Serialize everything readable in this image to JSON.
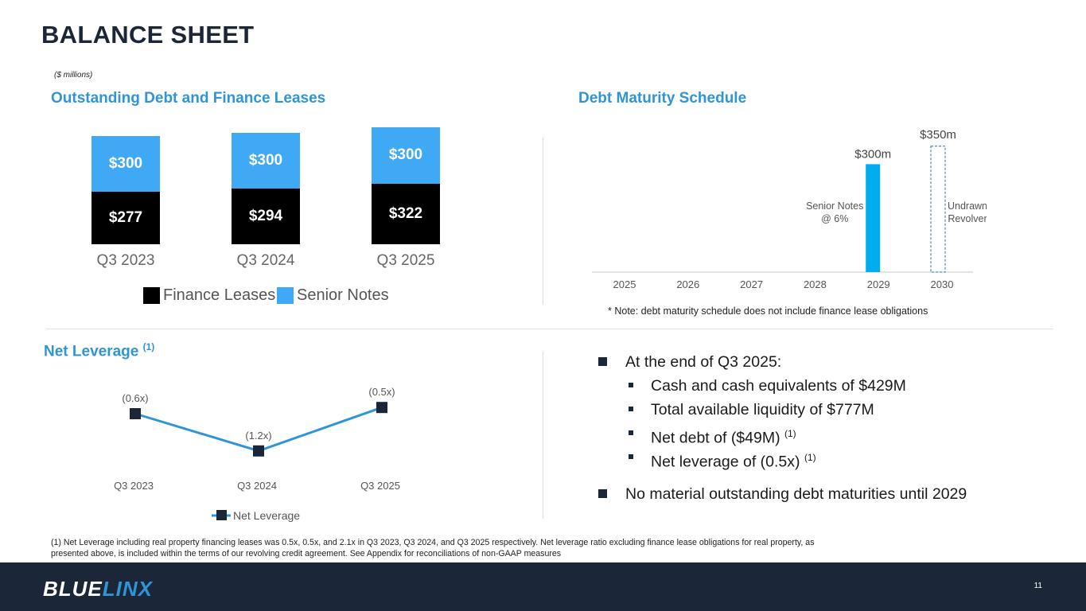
{
  "title": "BALANCE SHEET",
  "units": "($ millions)",
  "debt_section": {
    "title": "Outstanding Debt and Finance Leases",
    "legend": [
      {
        "label": "Finance Leases",
        "color": "#000000"
      },
      {
        "label": "Senior Notes",
        "color": "#3fa9f5"
      }
    ]
  },
  "maturity_section": {
    "title": "Debt Maturity Schedule",
    "note": "* Note:  debt maturity schedule does not include finance lease obligations"
  },
  "leverage_section": {
    "title": "Net Leverage",
    "title_sup": "(1)",
    "legend_label": "Net Leverage"
  },
  "bullets": {
    "main1": "At the end of Q3 2025:",
    "sub": [
      {
        "text": "Cash and cash equivalents of $429M",
        "sup": ""
      },
      {
        "text": "Total available liquidity of $777M",
        "sup": ""
      },
      {
        "text": "Net debt of ($49M)",
        "sup": "(1)"
      },
      {
        "text": "Net leverage of (0.5x)",
        "sup": "(1)"
      }
    ],
    "main2": "No material outstanding debt maturities until 2029"
  },
  "footnote": "(1)  Net Leverage including real property financing leases was 0.5x, 0.5x, and 2.1x in Q3 2023, Q3 2024, and Q3 2025 respectively.  Net leverage ratio excluding finance lease obligations for real property, as presented above, is included within the terms of our revolving credit agreement.  See Appendix for reconciliations of non-GAAP measures",
  "footer": {
    "logo_part1": "BLUE",
    "logo_part2": "LINX",
    "page_number": "11"
  },
  "chart_data": [
    {
      "type": "bar",
      "stacked": true,
      "title": "Outstanding Debt and Finance Leases",
      "categories": [
        "Q3 2023",
        "Q3 2024",
        "Q3 2025"
      ],
      "series": [
        {
          "name": "Finance Leases",
          "values": [
            277,
            294,
            322
          ],
          "labels": [
            "$277",
            "$294",
            "$322"
          ],
          "color": "#000000"
        },
        {
          "name": "Senior Notes",
          "values": [
            300,
            300,
            300
          ],
          "labels": [
            "$300",
            "$300",
            "$300"
          ],
          "color": "#3fa9f5"
        }
      ]
    },
    {
      "type": "bar",
      "title": "Debt Maturity Schedule",
      "categories": [
        "2025",
        "2026",
        "2027",
        "2028",
        "2029",
        "2030"
      ],
      "series": [
        {
          "name": "Senior Notes @ 6%",
          "label_line1": "Senior Notes",
          "label_line2": "@ 6%",
          "values": [
            0,
            0,
            0,
            0,
            300,
            0
          ],
          "value_label": "$300m",
          "color": "#00aeef"
        },
        {
          "name": "Undrawn Revolver",
          "label_line1": "Undrawn",
          "label_line2": "Revolver",
          "values": [
            0,
            0,
            0,
            0,
            0,
            350
          ],
          "value_label": "$350m",
          "style": "dashed-outline",
          "color": "#2f6fb0"
        }
      ]
    },
    {
      "type": "line",
      "title": "Net Leverage",
      "categories": [
        "Q3 2023",
        "Q3 2024",
        "Q3 2025"
      ],
      "values": [
        -0.6,
        -1.2,
        -0.5
      ],
      "labels": [
        "(0.6x)",
        "(1.2x)",
        "(0.5x)"
      ],
      "series_name": "Net Leverage",
      "line_color": "#2f95d6",
      "marker_color": "#1b2638"
    }
  ]
}
